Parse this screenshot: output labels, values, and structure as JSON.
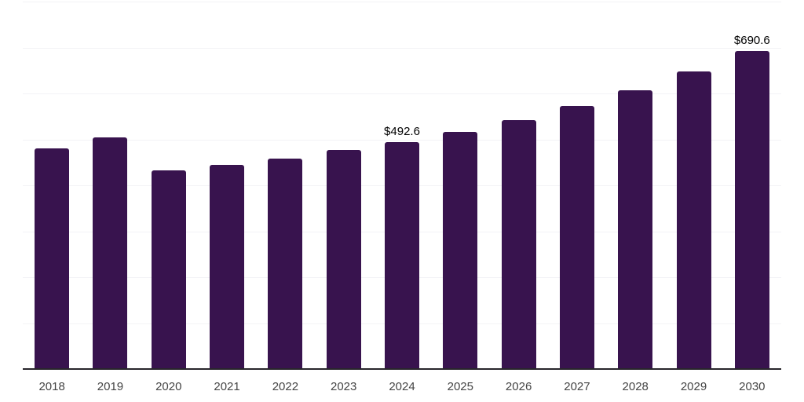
{
  "chart_data": {
    "type": "bar",
    "title": "",
    "xlabel": "",
    "ylabel": "",
    "categories": [
      "2018",
      "2019",
      "2020",
      "2021",
      "2022",
      "2023",
      "2024",
      "2025",
      "2026",
      "2027",
      "2028",
      "2029",
      "2030"
    ],
    "values": [
      478,
      502,
      431,
      443,
      457,
      476,
      492.6,
      514,
      541,
      571,
      605,
      646,
      690.6
    ],
    "value_labels": {
      "2024": "$492.6",
      "2030": "$690.6"
    },
    "ylim": [
      0,
      800
    ],
    "gridline_step": 100,
    "grid": true,
    "legend": "none",
    "colors": {
      "bar": "#38134e",
      "gridline": "#f3f3f6",
      "axis_line": "#28262b",
      "x_label": "#444444",
      "value_label": "#000000",
      "background": "#ffffff"
    }
  }
}
